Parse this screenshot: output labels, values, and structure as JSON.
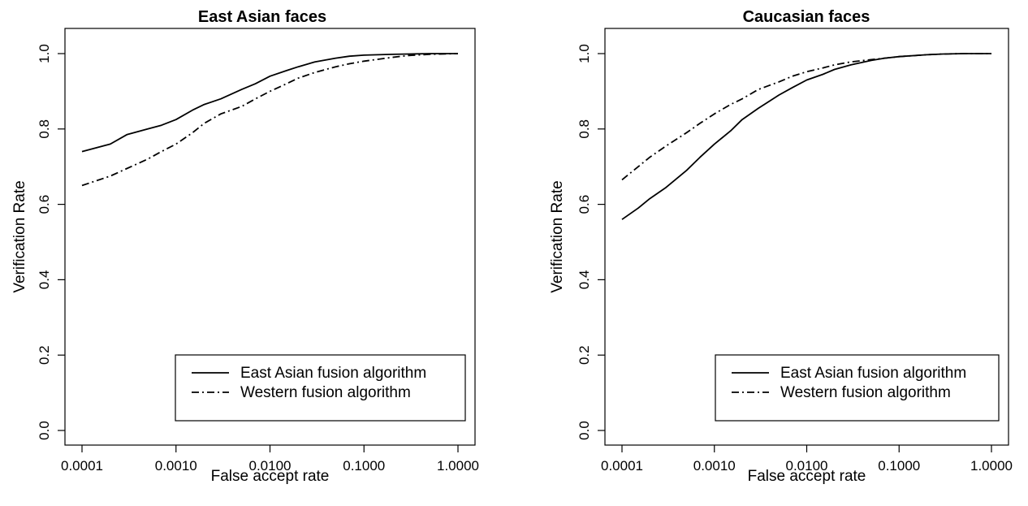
{
  "chart_data": [
    {
      "type": "line",
      "title": "East Asian faces",
      "xlabel": "False accept rate",
      "ylabel": "Verification Rate",
      "x_scale": "log",
      "xlim": [
        0.0001,
        1.0
      ],
      "ylim": [
        0.0,
        1.0
      ],
      "x_ticks": [
        "0.0001",
        "0.0010",
        "0.0100",
        "0.1000",
        "1.0000"
      ],
      "y_ticks": [
        "0.0",
        "0.2",
        "0.4",
        "0.6",
        "0.8",
        "1.0"
      ],
      "grid": false,
      "legend_position": "bottom-right",
      "series": [
        {
          "name": "East Asian fusion algorithm",
          "line_style": "solid",
          "color": "#000000",
          "x": [
            0.0001,
            0.0002,
            0.0003,
            0.0005,
            0.0007,
            0.001,
            0.0015,
            0.002,
            0.003,
            0.005,
            0.007,
            0.01,
            0.015,
            0.02,
            0.03,
            0.05,
            0.07,
            0.1,
            0.2,
            0.3,
            0.5,
            1.0
          ],
          "y": [
            0.74,
            0.76,
            0.785,
            0.8,
            0.81,
            0.825,
            0.85,
            0.865,
            0.88,
            0.905,
            0.92,
            0.94,
            0.955,
            0.965,
            0.978,
            0.988,
            0.993,
            0.996,
            0.998,
            0.999,
            1.0,
            1.0
          ]
        },
        {
          "name": "Western fusion algorithm",
          "line_style": "dashdot",
          "color": "#000000",
          "x": [
            0.0001,
            0.0002,
            0.0003,
            0.0005,
            0.0007,
            0.001,
            0.0015,
            0.002,
            0.003,
            0.005,
            0.007,
            0.01,
            0.015,
            0.02,
            0.03,
            0.05,
            0.07,
            0.1,
            0.2,
            0.3,
            0.5,
            1.0
          ],
          "y": [
            0.65,
            0.675,
            0.695,
            0.72,
            0.74,
            0.76,
            0.79,
            0.815,
            0.84,
            0.86,
            0.88,
            0.9,
            0.92,
            0.935,
            0.95,
            0.965,
            0.973,
            0.98,
            0.99,
            0.995,
            0.998,
            1.0
          ]
        }
      ]
    },
    {
      "type": "line",
      "title": "Caucasian faces",
      "xlabel": "False accept rate",
      "ylabel": "Verification Rate",
      "x_scale": "log",
      "xlim": [
        0.0001,
        1.0
      ],
      "ylim": [
        0.0,
        1.0
      ],
      "x_ticks": [
        "0.0001",
        "0.0010",
        "0.0100",
        "0.1000",
        "1.0000"
      ],
      "y_ticks": [
        "0.0",
        "0.2",
        "0.4",
        "0.6",
        "0.8",
        "1.0"
      ],
      "grid": false,
      "legend_position": "bottom-right",
      "series": [
        {
          "name": "East Asian fusion algorithm",
          "line_style": "solid",
          "color": "#000000",
          "x": [
            0.0001,
            0.00015,
            0.0002,
            0.0003,
            0.0005,
            0.0007,
            0.001,
            0.0015,
            0.002,
            0.003,
            0.005,
            0.007,
            0.01,
            0.015,
            0.02,
            0.03,
            0.05,
            0.07,
            0.1,
            0.2,
            0.3,
            0.5,
            1.0
          ],
          "y": [
            0.56,
            0.59,
            0.615,
            0.645,
            0.69,
            0.725,
            0.76,
            0.795,
            0.825,
            0.855,
            0.89,
            0.91,
            0.93,
            0.945,
            0.958,
            0.97,
            0.982,
            0.988,
            0.992,
            0.997,
            0.999,
            1.0,
            1.0
          ]
        },
        {
          "name": "Western fusion algorithm",
          "line_style": "dashdot",
          "color": "#000000",
          "x": [
            0.0001,
            0.00015,
            0.0002,
            0.0003,
            0.0005,
            0.0007,
            0.001,
            0.0015,
            0.002,
            0.003,
            0.005,
            0.007,
            0.01,
            0.015,
            0.02,
            0.03,
            0.05,
            0.07,
            0.1,
            0.2,
            0.3,
            0.5,
            1.0
          ],
          "y": [
            0.665,
            0.7,
            0.725,
            0.755,
            0.79,
            0.815,
            0.84,
            0.865,
            0.88,
            0.905,
            0.925,
            0.94,
            0.952,
            0.962,
            0.97,
            0.978,
            0.984,
            0.988,
            0.992,
            0.997,
            0.999,
            1.0,
            1.0
          ]
        }
      ]
    }
  ]
}
